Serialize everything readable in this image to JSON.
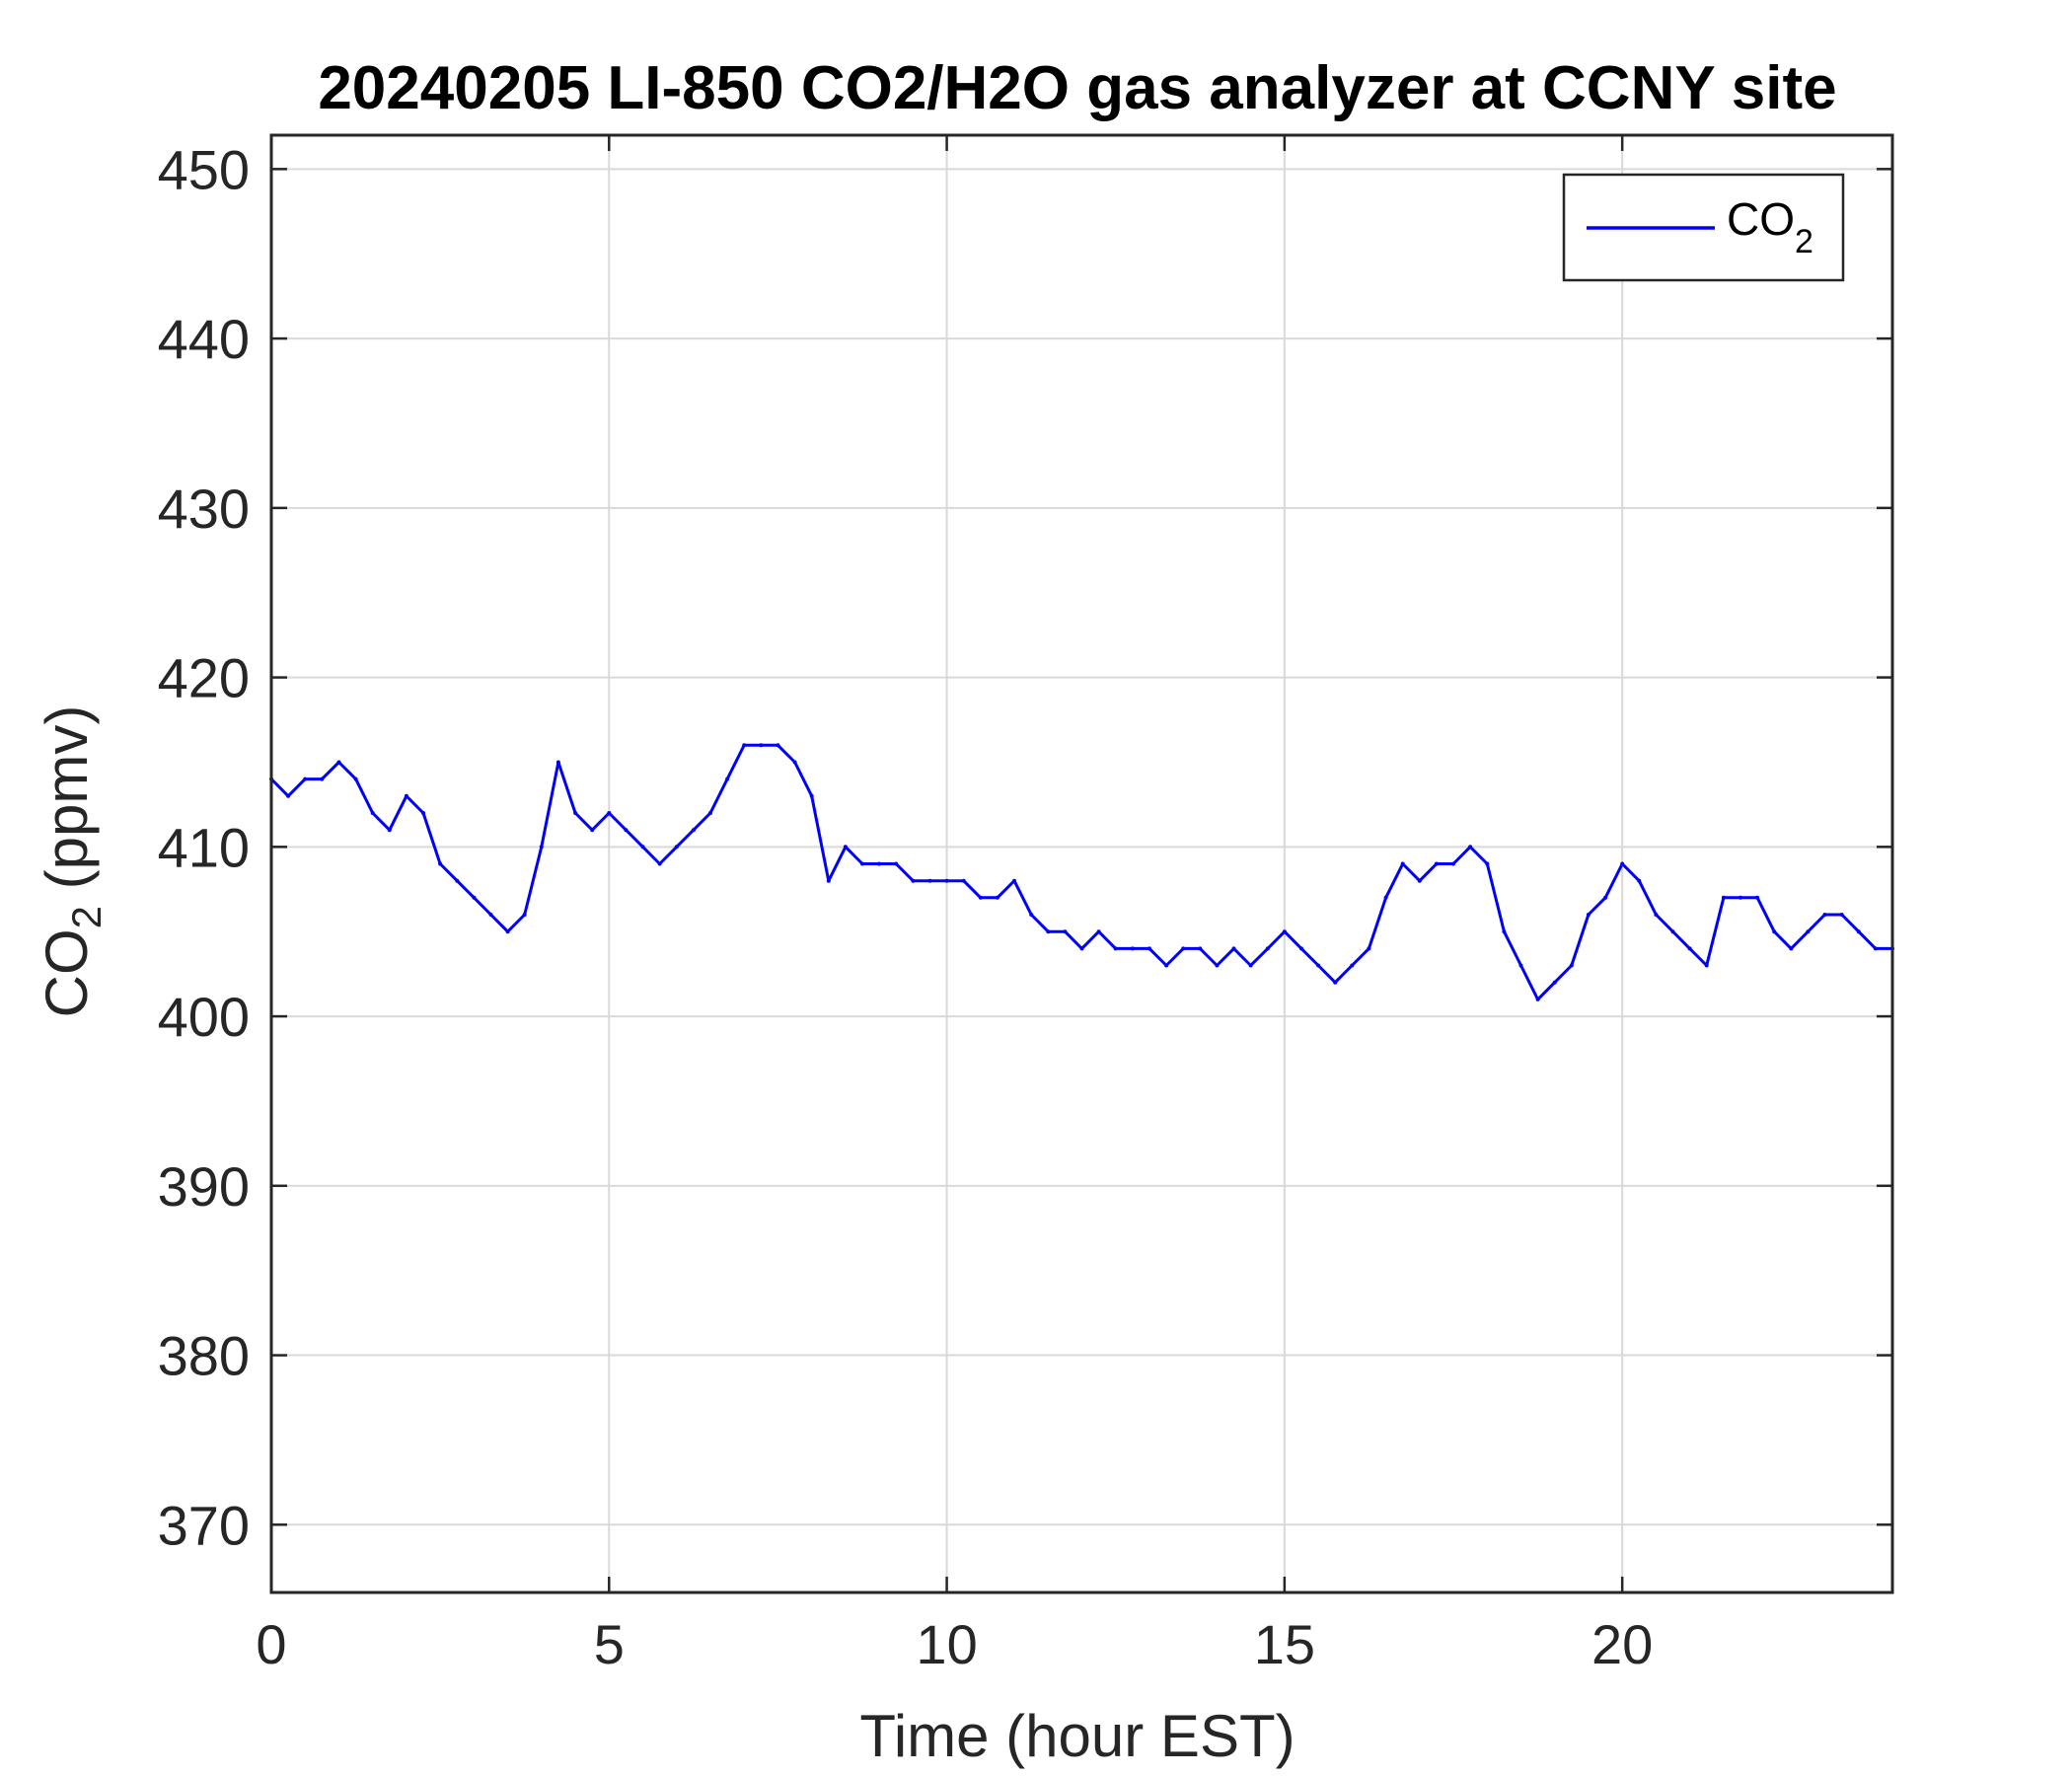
{
  "chart_data": {
    "type": "line",
    "title": "20240205 LI-850 CO2/H2O gas analyzer at CCNY site",
    "xlabel": "Time (hour EST)",
    "ylabel": {
      "base": "CO",
      "sub": "2",
      "suffix": " (ppmv)"
    },
    "xlim": [
      0,
      24
    ],
    "ylim": [
      366,
      452
    ],
    "xticks": [
      0,
      5,
      10,
      15,
      20
    ],
    "yticks": [
      370,
      380,
      390,
      400,
      410,
      420,
      430,
      440,
      450
    ],
    "grid": true,
    "legend_position": "top-right",
    "series": [
      {
        "name": {
          "base": "CO",
          "sub": "2"
        },
        "color": "#0000ff",
        "x": [
          0.0,
          0.25,
          0.5,
          0.75,
          1.0,
          1.25,
          1.5,
          1.75,
          2.0,
          2.25,
          2.5,
          2.75,
          3.0,
          3.25,
          3.5,
          3.75,
          4.0,
          4.25,
          4.5,
          4.75,
          5.0,
          5.25,
          5.5,
          5.75,
          6.0,
          6.25,
          6.5,
          6.75,
          7.0,
          7.25,
          7.5,
          7.75,
          8.0,
          8.25,
          8.5,
          8.75,
          9.0,
          9.25,
          9.5,
          9.75,
          10.0,
          10.25,
          10.5,
          10.75,
          11.0,
          11.25,
          11.5,
          11.75,
          12.0,
          12.25,
          12.5,
          12.75,
          13.0,
          13.25,
          13.5,
          13.75,
          14.0,
          14.25,
          14.5,
          14.75,
          15.0,
          15.25,
          15.5,
          15.75,
          16.0,
          16.25,
          16.5,
          16.75,
          17.0,
          17.25,
          17.5,
          17.75,
          18.0,
          18.25,
          18.5,
          18.75,
          19.0,
          19.25,
          19.5,
          19.75,
          20.0,
          20.25,
          20.5,
          20.75,
          21.0,
          21.25,
          21.5,
          21.75,
          22.0,
          22.25,
          22.5,
          22.75,
          23.0,
          23.25,
          23.5,
          23.75,
          24.0
        ],
        "y": [
          414,
          413,
          414,
          414,
          415,
          414,
          412,
          411,
          413,
          412,
          409,
          408,
          407,
          406,
          405,
          406,
          410,
          415,
          412,
          411,
          412,
          411,
          410,
          409,
          410,
          411,
          412,
          414,
          416,
          416,
          416,
          415,
          413,
          408,
          410,
          409,
          409,
          409,
          408,
          408,
          408,
          408,
          407,
          407,
          408,
          406,
          405,
          405,
          404,
          405,
          404,
          404,
          404,
          403,
          404,
          404,
          403,
          404,
          403,
          404,
          405,
          404,
          403,
          402,
          403,
          404,
          407,
          409,
          408,
          409,
          409,
          410,
          409,
          405,
          403,
          401,
          402,
          403,
          406,
          407,
          409,
          408,
          406,
          405,
          404,
          403,
          407,
          407,
          407,
          405,
          404,
          405,
          406,
          406,
          405,
          404,
          404
        ]
      }
    ]
  }
}
